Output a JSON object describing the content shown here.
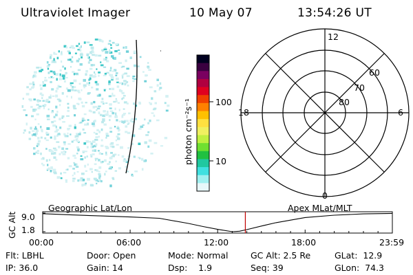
{
  "header": {
    "instrument": "Ultraviolet Imager",
    "date": "10 May 07",
    "time": "13:54:26 UT"
  },
  "colorbar": {
    "unit_label": "photon cm⁻²s⁻¹",
    "ticks": [
      "100",
      "10"
    ],
    "colors": [
      "#000020",
      "#3a0040",
      "#7a0060",
      "#b00040",
      "#e00020",
      "#f04000",
      "#ff8000",
      "#ffc000",
      "#ffe040",
      "#f0f060",
      "#c0f040",
      "#70e030",
      "#20c040",
      "#20c8a0",
      "#40e0e0",
      "#a0f0f0",
      "#e8f8fa"
    ]
  },
  "polar_grid": {
    "lat_labels": [
      "60",
      "70",
      "80"
    ],
    "mlt_labels": {
      "top": "12",
      "bottom": "0",
      "left": "18",
      "right": "6"
    }
  },
  "chart_data": {
    "type": "line",
    "title": "",
    "ylabel": "GC Alt",
    "yticks": [
      "9.0",
      "1.8"
    ],
    "ylim": [
      1.8,
      9.0
    ],
    "xlim": [
      "00:00",
      "23:59"
    ],
    "xticks": [
      "00:00",
      "06:00",
      "12:00",
      "18:00",
      "23:59"
    ],
    "left_annotation": "Geographic Lat/Lon",
    "right_annotation": "Apex MLat/MLT",
    "series": [
      {
        "x": [
          0,
          2,
          4,
          6,
          8,
          10,
          11,
          12,
          13,
          13.5,
          14,
          15,
          16,
          18,
          20,
          22,
          23.98
        ],
        "y": [
          8.8,
          8.3,
          7.9,
          7.5,
          7.0,
          5.0,
          3.8,
          2.7,
          1.8,
          2.0,
          2.6,
          4.0,
          5.3,
          7.3,
          8.2,
          8.7,
          8.9
        ]
      }
    ],
    "current_time_marker": 13.9,
    "colors": {
      "curve": "#000000",
      "marker": "#c00000"
    }
  },
  "status": {
    "filter": "Flt: LBHL",
    "ip": "IP: 36.0",
    "door": "Door: Open",
    "gain": "Gain: 14",
    "mode": "Mode: Normal",
    "dsp": "Dsp:    1.9",
    "gc_alt": "GC Alt: 2.5 Re",
    "seq": "Seq: 39",
    "glat": "GLat:  12.9",
    "glon": "GLon:  74.3"
  }
}
